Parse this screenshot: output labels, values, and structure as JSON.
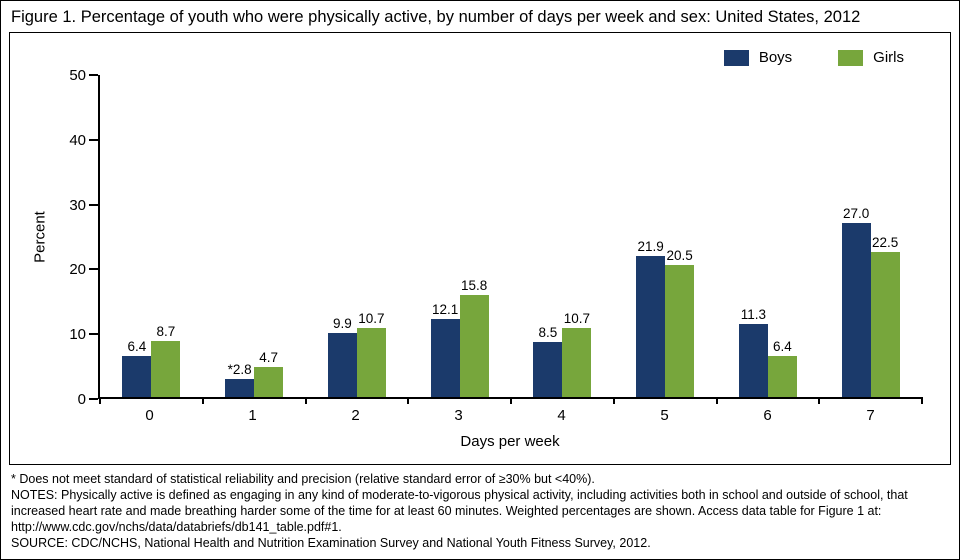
{
  "title": "Figure 1. Percentage of youth who were physically active, by number of days per week and sex: United States, 2012",
  "chart_data": {
    "type": "bar",
    "categories": [
      "0",
      "1",
      "2",
      "3",
      "4",
      "5",
      "6",
      "7"
    ],
    "series": [
      {
        "name": "Boys",
        "color": "#1b3a6b",
        "values": [
          6.4,
          2.8,
          9.9,
          12.1,
          8.5,
          21.9,
          11.3,
          27.0
        ],
        "labels": [
          "6.4",
          "*2.8",
          "9.9",
          "12.1",
          "8.5",
          "21.9",
          "11.3",
          "27.0"
        ]
      },
      {
        "name": "Girls",
        "color": "#77a63c",
        "values": [
          8.7,
          4.7,
          10.7,
          15.8,
          10.7,
          20.5,
          6.4,
          22.5
        ],
        "labels": [
          "8.7",
          "4.7",
          "10.7",
          "15.8",
          "10.7",
          "20.5",
          "6.4",
          "22.5"
        ]
      }
    ],
    "xlabel": "Days per week",
    "ylabel": "Percent",
    "ylim": [
      0,
      50
    ],
    "yticks": [
      0,
      10,
      20,
      30,
      40,
      50
    ],
    "grid": false,
    "legend_position": "top-right"
  },
  "footnotes": {
    "asterisk": "* Does not meet standard of statistical reliability and precision (relative standard error of ≥30% but <40%).",
    "notes": "NOTES: Physically active is defined as engaging in any kind of moderate-to-vigorous physical activity, including activities both in school and outside of school, that increased heart rate and made breathing harder some of the time for at least 60 minutes. Weighted percentages are shown. Access data table for Figure 1 at: http://www.cdc.gov/nchs/data/databriefs/db141_table.pdf#1.",
    "source": "SOURCE: CDC/NCHS, National Health and Nutrition Examination Survey and National Youth Fitness Survey, 2012."
  }
}
